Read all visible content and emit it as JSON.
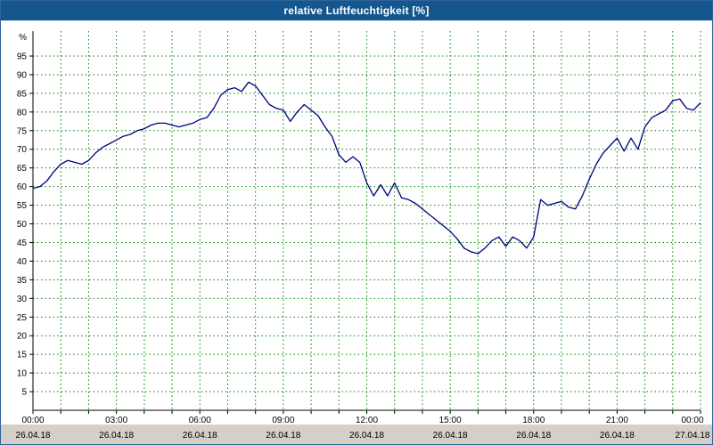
{
  "window": {
    "title": "relative Luftfeuchtigkeit [%]"
  },
  "colors": {
    "titlebar_bg": "#14568d",
    "titlebar_text": "#ffffff",
    "line": "#000080",
    "grid": "#008000",
    "axis": "#000000",
    "plot_bg": "#ffffff",
    "bottom_strip_bg": "#d4d0c8",
    "window_border": "#31639c"
  },
  "chart_data": {
    "type": "line",
    "title": "relative Luftfeuchtigkeit [%]",
    "ylabel": "%",
    "xlabel": "",
    "ylim": [
      0,
      100
    ],
    "y_ticks": [
      5,
      10,
      15,
      20,
      25,
      30,
      35,
      40,
      45,
      50,
      55,
      60,
      65,
      70,
      75,
      80,
      85,
      90,
      95
    ],
    "x_unit": "time of day (hours)",
    "x_range_hours": [
      0,
      24
    ],
    "x_ticks": [
      {
        "hour": 0,
        "time": "00:00",
        "date": "26.04.18"
      },
      {
        "hour": 3,
        "time": "03:00",
        "date": "26.04.18"
      },
      {
        "hour": 6,
        "time": "06:00",
        "date": "26.04.18"
      },
      {
        "hour": 9,
        "time": "09:00",
        "date": "26.04.18"
      },
      {
        "hour": 12,
        "time": "12:00",
        "date": "26.04.18"
      },
      {
        "hour": 15,
        "time": "15:00",
        "date": "26.04.18"
      },
      {
        "hour": 18,
        "time": "18:00",
        "date": "26.04.18"
      },
      {
        "hour": 21,
        "time": "21:00",
        "date": "26.04.18"
      },
      {
        "hour": 24,
        "time": "00:00",
        "date": "27.04.18"
      }
    ],
    "grid": {
      "shown": true,
      "style": "dotted",
      "vertical_every_hours": 1,
      "horizontal_every_percent": 5
    },
    "legend": "none",
    "series": [
      {
        "name": "relative Luftfeuchtigkeit",
        "color": "#000080",
        "x_start_hour": 0,
        "x_step_hours": 0.25,
        "values": [
          59.5,
          60,
          61.5,
          64,
          66,
          67,
          66.5,
          66,
          67,
          69,
          70.5,
          71.5,
          72.5,
          73.5,
          74,
          75,
          75.5,
          76.5,
          77,
          77,
          76.5,
          76,
          76.5,
          77,
          78,
          78.5,
          81,
          84.5,
          86,
          86.5,
          85.5,
          88,
          87,
          84.5,
          82,
          81,
          80.5,
          77.5,
          80,
          82,
          80.5,
          79,
          76,
          73.5,
          68.5,
          66.5,
          68,
          66.5,
          61,
          57.5,
          60.5,
          57.5,
          61,
          57,
          56.5,
          55.5,
          54,
          52.5,
          51,
          49.5,
          48,
          46,
          43.5,
          42.5,
          42,
          43.5,
          45.5,
          46.5,
          44,
          46.5,
          45.5,
          43.5,
          46.5,
          56.5,
          55,
          55.5,
          56,
          54.5,
          54,
          57.5,
          62,
          66,
          69,
          71,
          73,
          69.5,
          73,
          70,
          76,
          78.5,
          79.5,
          80.5,
          83,
          83.5,
          81,
          80.5,
          82.5
        ]
      }
    ]
  }
}
